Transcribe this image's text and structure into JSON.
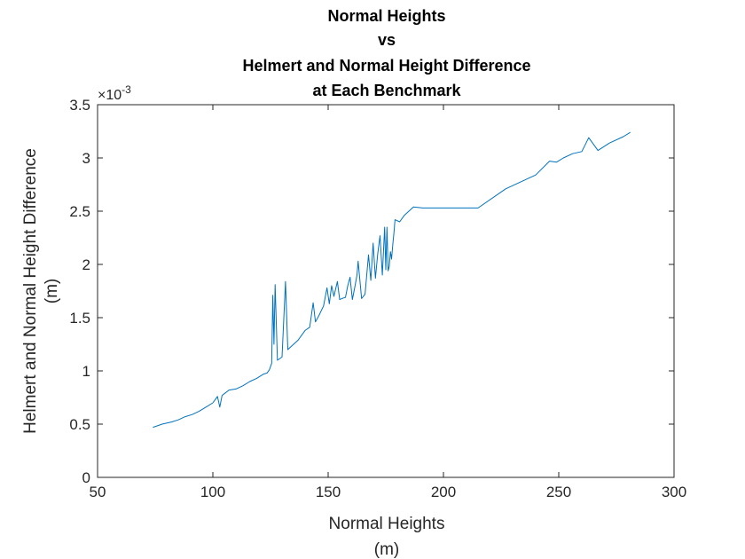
{
  "chart_data": {
    "type": "line",
    "title": [
      "Normal Heights",
      "vs",
      "Helmert and Normal Height Difference",
      "at Each Benchmark"
    ],
    "xlabel": [
      "Normal Heights",
      "(m)"
    ],
    "ylabel": [
      "Helmert and Normal Height Difference",
      "(m)"
    ],
    "xlim": [
      50,
      300
    ],
    "ylim": [
      0,
      0.0035
    ],
    "xticks": [
      "50",
      "100",
      "150",
      "200",
      "250",
      "300"
    ],
    "yticks": [
      "0",
      "0.5",
      "1",
      "1.5",
      "2",
      "2.5",
      "3",
      "3.5"
    ],
    "y_exponent_base": "×10",
    "y_exponent_power": "-3",
    "grid": false,
    "line_color": "#0072BD",
    "series": [
      {
        "x": [
          74,
          78,
          82,
          85,
          88,
          91,
          94,
          97,
          100,
          101,
          102,
          103,
          104,
          107,
          110,
          113,
          116,
          119,
          122,
          123.5,
          124.5,
          125.5,
          126,
          126.5,
          127,
          128,
          130,
          131.5,
          132.5,
          134,
          137,
          140,
          142,
          143.5,
          144.5,
          146,
          148,
          149.5,
          150.5,
          151.5,
          152.5,
          154,
          155,
          156,
          157.5,
          158.5,
          159.5,
          160.5,
          161.5,
          162.5,
          163,
          164.5,
          166,
          167.5,
          168.5,
          169.5,
          170.5,
          171.5,
          172.5,
          173.5,
          174.5,
          175,
          175.5,
          176,
          176.5,
          177,
          177.5,
          178,
          178.5,
          179,
          181,
          183,
          187,
          191,
          196,
          205,
          215,
          227,
          232,
          240,
          246,
          249,
          252,
          256,
          260,
          263,
          267,
          272,
          278,
          281
        ],
        "y": [
          0.00047,
          0.0005,
          0.00052,
          0.00054,
          0.00057,
          0.00059,
          0.00062,
          0.00066,
          0.0007,
          0.00073,
          0.00076,
          0.00066,
          0.00077,
          0.00082,
          0.00083,
          0.00086,
          0.0009,
          0.00093,
          0.00097,
          0.00098,
          0.00101,
          0.00107,
          0.00171,
          0.00125,
          0.00181,
          0.0011,
          0.00113,
          0.00184,
          0.0012,
          0.00123,
          0.00129,
          0.00138,
          0.00141,
          0.00164,
          0.00146,
          0.00152,
          0.00161,
          0.00178,
          0.00163,
          0.0018,
          0.0017,
          0.00184,
          0.00167,
          0.00168,
          0.00169,
          0.0018,
          0.00188,
          0.00167,
          0.00178,
          0.0019,
          0.00203,
          0.00168,
          0.00172,
          0.00209,
          0.00185,
          0.0022,
          0.00187,
          0.0021,
          0.00227,
          0.0019,
          0.00235,
          0.00195,
          0.00235,
          0.00194,
          0.00198,
          0.00212,
          0.00205,
          0.00218,
          0.00229,
          0.00242,
          0.0024,
          0.00246,
          0.00254,
          0.00253,
          0.00253,
          0.00253,
          0.00253,
          0.00271,
          0.00276,
          0.00284,
          0.00297,
          0.00296,
          0.003,
          0.00304,
          0.00306,
          0.00319,
          0.00307,
          0.00314,
          0.0032,
          0.00324
        ]
      }
    ]
  }
}
